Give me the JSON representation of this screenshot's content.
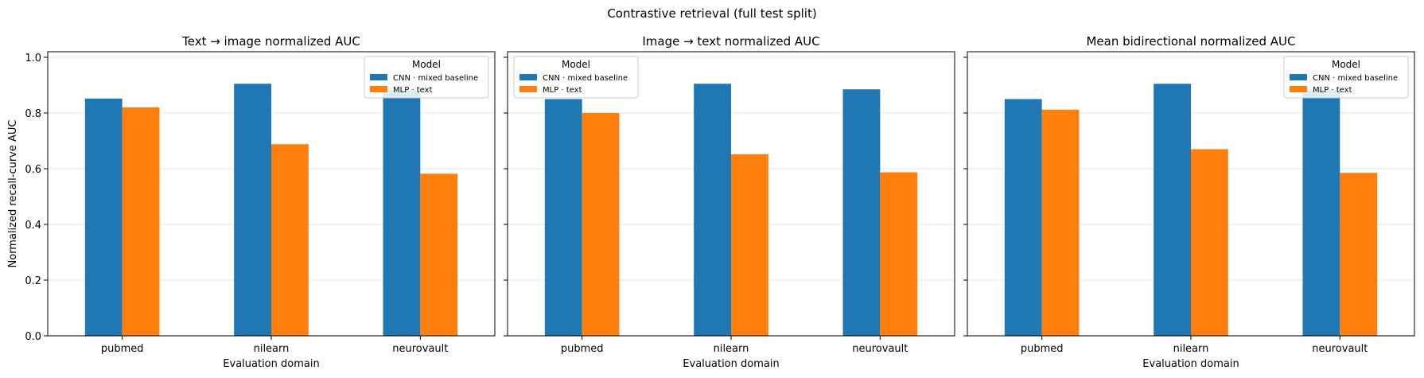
{
  "figure": {
    "suptitle": "Contrastive retrieval (full test split)"
  },
  "colors": {
    "cnn": "#1f77b4",
    "mlp": "#ff7f0e",
    "grid": "#e6e6e6",
    "legend_edge": "#cccccc"
  },
  "chart_data": [
    {
      "type": "bar",
      "title": "Text → image normalized AUC",
      "xlabel": "Evaluation domain",
      "ylabel": "Normalized recall-curve AUC",
      "categories": [
        "pubmed",
        "nilearn",
        "neurovault"
      ],
      "series": [
        {
          "name": "CNN · mixed baseline",
          "values": [
            0.852,
            0.905,
            0.882
          ]
        },
        {
          "name": "MLP · text",
          "values": [
            0.82,
            0.688,
            0.582
          ]
        }
      ],
      "ylim": [
        0,
        1.02
      ],
      "yticks": [
        "0.0",
        "0.2",
        "0.4",
        "0.6",
        "0.8",
        "1.0"
      ],
      "grid": "y",
      "legend_title": "Model",
      "legend_position": "upper right"
    },
    {
      "type": "bar",
      "title": "Image → text normalized AUC",
      "xlabel": "Evaluation domain",
      "ylabel": "",
      "categories": [
        "pubmed",
        "nilearn",
        "neurovault"
      ],
      "series": [
        {
          "name": "CNN · mixed baseline",
          "values": [
            0.85,
            0.905,
            0.885
          ]
        },
        {
          "name": "MLP · text",
          "values": [
            0.8,
            0.652,
            0.587
          ]
        }
      ],
      "ylim": [
        0,
        1.02
      ],
      "yticks": [
        "0.0",
        "0.2",
        "0.4",
        "0.6",
        "0.8",
        "1.0"
      ],
      "grid": "y",
      "legend_title": "Model",
      "legend_position": "upper left"
    },
    {
      "type": "bar",
      "title": "Mean bidirectional normalized AUC",
      "xlabel": "Evaluation domain",
      "ylabel": "",
      "categories": [
        "pubmed",
        "nilearn",
        "neurovault"
      ],
      "series": [
        {
          "name": "CNN · mixed baseline",
          "values": [
            0.85,
            0.905,
            0.884
          ]
        },
        {
          "name": "MLP · text",
          "values": [
            0.812,
            0.67,
            0.585
          ]
        }
      ],
      "ylim": [
        0,
        1.02
      ],
      "yticks": [
        "0.0",
        "0.2",
        "0.4",
        "0.6",
        "0.8",
        "1.0"
      ],
      "grid": "y",
      "legend_title": "Model",
      "legend_position": "upper right"
    }
  ]
}
